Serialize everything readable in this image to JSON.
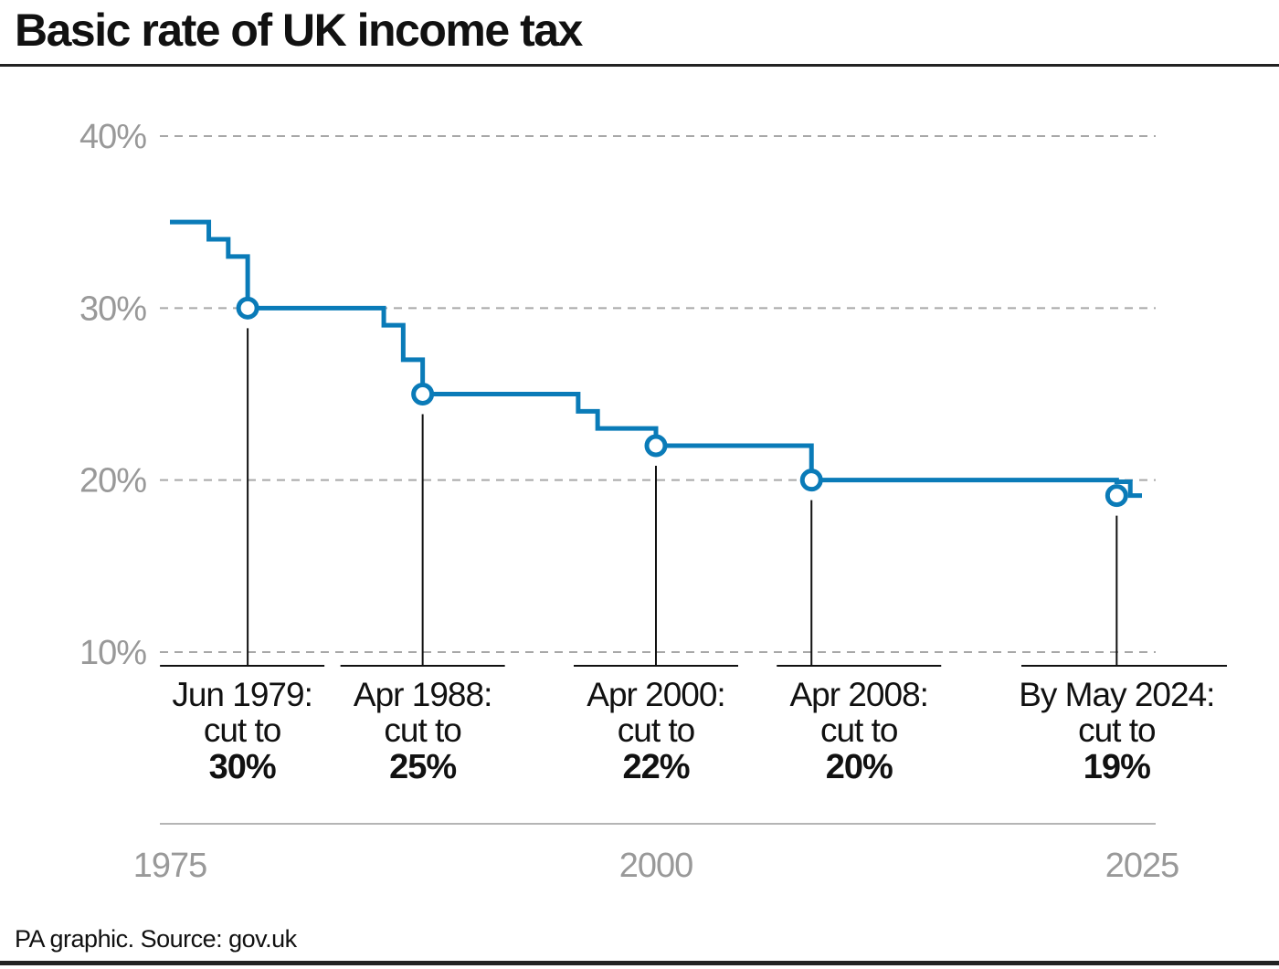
{
  "header": {
    "title": "Basic rate of UK income tax"
  },
  "footer": {
    "source": "PA graphic. Source: gov.uk"
  },
  "chart_data": {
    "type": "line",
    "step": true,
    "title": "Basic rate of UK income tax",
    "xlabel": "",
    "ylabel": "",
    "xlim": [
      1975,
      2025
    ],
    "ylim": [
      10,
      40
    ],
    "y_ticks": [
      {
        "value": 10,
        "label": "10%"
      },
      {
        "value": 20,
        "label": "20%"
      },
      {
        "value": 30,
        "label": "30%"
      },
      {
        "value": 40,
        "label": "40%"
      }
    ],
    "x_ticks": [
      {
        "value": 1975,
        "label": "1975"
      },
      {
        "value": 2000,
        "label": "2000"
      },
      {
        "value": 2025,
        "label": "2025"
      }
    ],
    "grid": "horizontal dashed",
    "line_color": "#0a7bb8",
    "series": [
      {
        "x": [
          1975,
          1977,
          1978,
          1979,
          1986,
          1987,
          1988,
          1996,
          1997,
          2000,
          2008,
          2023.7,
          2024.4,
          2025
        ],
        "y": [
          35,
          34,
          33,
          30,
          29,
          27,
          25,
          24,
          23,
          22,
          20,
          19.9,
          19.1,
          19.1
        ]
      }
    ],
    "annotations": [
      {
        "x": 1979,
        "y": 30,
        "line1": "Jun 1979:",
        "line2": "cut to",
        "value": "30%"
      },
      {
        "x": 1988,
        "y": 25,
        "line1": "Apr 1988:",
        "line2": "cut to",
        "value": "25%"
      },
      {
        "x": 2000,
        "y": 22,
        "line1": "Apr 2000:",
        "line2": "cut to",
        "value": "22%"
      },
      {
        "x": 2008,
        "y": 20,
        "line1": "Apr 2008:",
        "line2": "cut to",
        "value": "20%"
      },
      {
        "x": 2023.7,
        "y": 19.1,
        "line1": "By May 2024:",
        "line2": "cut to",
        "value": "19%"
      }
    ]
  }
}
